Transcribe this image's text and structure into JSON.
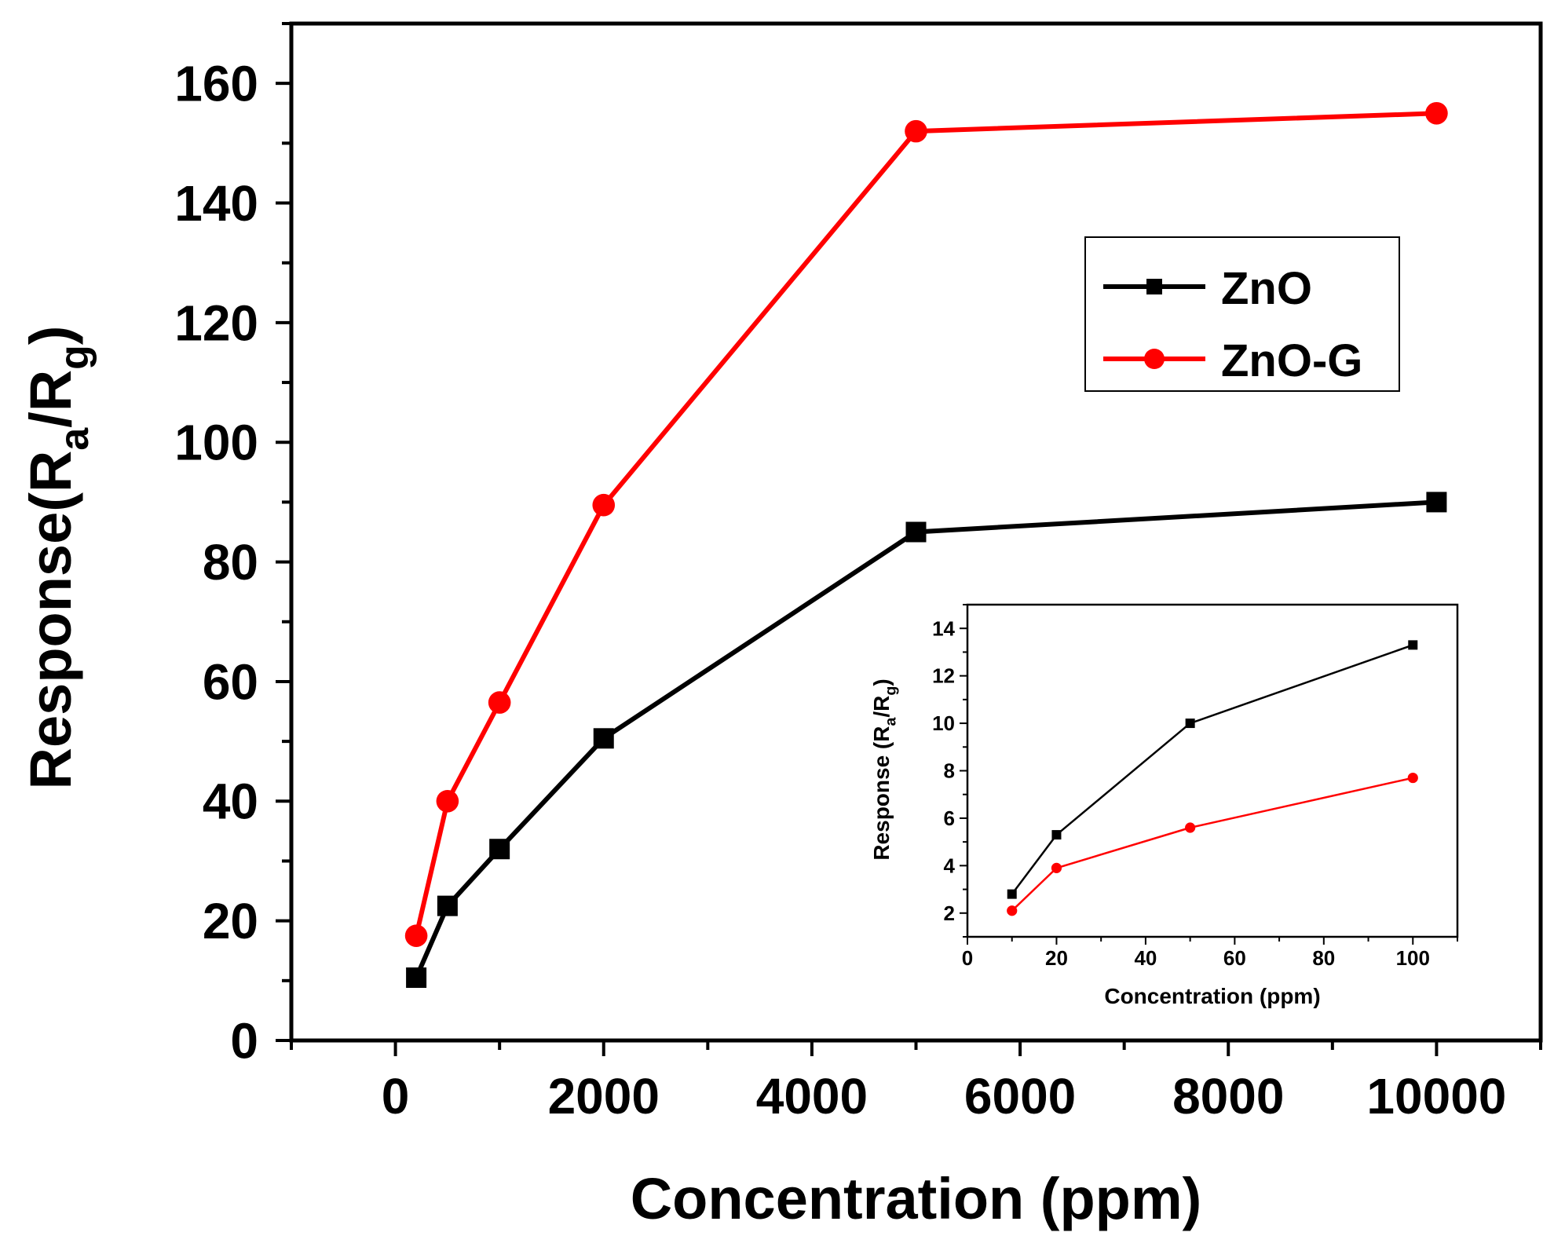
{
  "chart_data": [
    {
      "type": "line",
      "role": "main",
      "title": "",
      "xlabel": "Concentration (ppm)",
      "ylabel": {
        "prefix": "Response(R",
        "sub1": "a",
        "mid": "/R",
        "sub2": "g",
        "suffix": ")"
      },
      "xlim": [
        -1000,
        11000
      ],
      "ylim": [
        0,
        170
      ],
      "xticks": [
        0,
        2000,
        4000,
        6000,
        8000,
        10000
      ],
      "yticks": [
        0,
        20,
        40,
        60,
        80,
        100,
        120,
        140,
        160
      ],
      "xtick_labels": [
        "0",
        "2000",
        "4000",
        "6000",
        "8000",
        "10000"
      ],
      "ytick_labels": [
        "0",
        "20",
        "40",
        "60",
        "80",
        "100",
        "120",
        "140",
        "160"
      ],
      "legend": {
        "position": "top-right",
        "entries": [
          "ZnO",
          "ZnO-G"
        ]
      },
      "series": [
        {
          "name": "ZnO",
          "color": "#000000",
          "marker": "square",
          "x": [
            200,
            500,
            1000,
            2000,
            5000,
            10000
          ],
          "y": [
            10.5,
            22.5,
            32,
            50.5,
            85,
            90
          ]
        },
        {
          "name": "ZnO-G",
          "color": "#ff0000",
          "marker": "circle",
          "x": [
            200,
            500,
            1000,
            2000,
            5000,
            10000
          ],
          "y": [
            17.5,
            40,
            56.5,
            89.5,
            152,
            155
          ]
        }
      ]
    },
    {
      "type": "line",
      "role": "inset",
      "title": "",
      "xlabel": "Concentration (ppm)",
      "ylabel": {
        "prefix": "Response (R",
        "sub1": "a",
        "mid": "/R",
        "sub2": "g",
        "suffix": ")"
      },
      "xlim": [
        0,
        110
      ],
      "ylim": [
        1,
        15
      ],
      "xticks": [
        0,
        20,
        40,
        60,
        80,
        100
      ],
      "yticks": [
        2,
        4,
        6,
        8,
        10,
        12,
        14
      ],
      "xtick_labels": [
        "0",
        "20",
        "40",
        "60",
        "80",
        "100"
      ],
      "ytick_labels": [
        "2",
        "4",
        "6",
        "8",
        "10",
        "12",
        "14"
      ],
      "series": [
        {
          "name": "ZnO",
          "color": "#000000",
          "marker": "square",
          "x": [
            10,
            20,
            50,
            100
          ],
          "y": [
            2.8,
            5.3,
            10,
            13.3
          ]
        },
        {
          "name": "ZnO-G",
          "color": "#ff0000",
          "marker": "circle",
          "x": [
            10,
            20,
            50,
            100
          ],
          "y": [
            2.1,
            3.9,
            5.6,
            7.7
          ]
        }
      ]
    }
  ]
}
